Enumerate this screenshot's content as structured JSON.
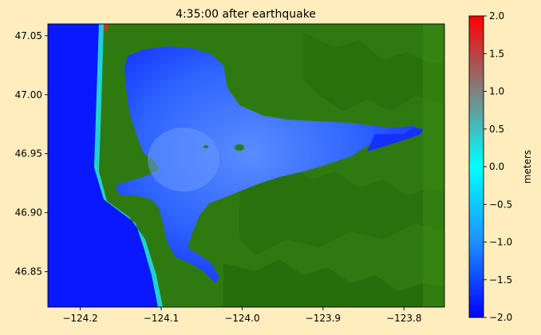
{
  "chart_data": {
    "type": "heatmap",
    "title": "4:35:00 after earthquake",
    "xlabel": "",
    "ylabel": "",
    "xlim": [
      -124.24,
      -123.75
    ],
    "ylim": [
      46.82,
      47.06
    ],
    "x_ticks": [
      -124.2,
      -124.1,
      -124.0,
      -123.9,
      -123.8
    ],
    "x_tick_labels": [
      "−124.2",
      "−124.1",
      "−124.0",
      "−123.9",
      "−123.8"
    ],
    "y_ticks": [
      46.85,
      46.9,
      46.95,
      47.0,
      47.05
    ],
    "y_tick_labels": [
      "46.85",
      "46.90",
      "46.95",
      "47.00",
      "47.05"
    ],
    "grid": false,
    "colorbar": {
      "label": "meters",
      "range": [
        -2.0,
        2.0
      ],
      "ticks": [
        2.0,
        1.5,
        1.0,
        0.5,
        0.0,
        -0.5,
        -1.0,
        -1.5,
        -2.0
      ],
      "tick_labels": [
        "2.0",
        "1.5",
        "1.0",
        "0.5",
        "0.0",
        "−0.5",
        "−1.0",
        "−1.5",
        "−2.0"
      ],
      "colors": [
        "#0000ff",
        "#1e90ff",
        "#00ffff",
        "#808080",
        "#ff0000"
      ]
    },
    "colors": {
      "ocean": "#0a18ff",
      "bay": "#2255ff",
      "land": "#2f7a10",
      "land_dark": "#1f6a08",
      "background": "#ffedbe"
    }
  }
}
